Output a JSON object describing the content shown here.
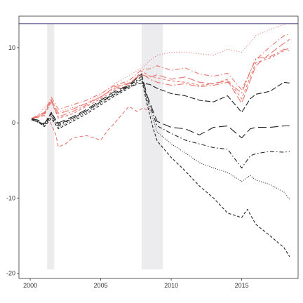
{
  "chart_data": {
    "type": "line",
    "title": "",
    "xlabel": "",
    "ylabel": "",
    "xlim": [
      1999.2,
      2019.0
    ],
    "ylim": [
      -20.7,
      14.2
    ],
    "x_ticks": [
      2000,
      2005,
      2010,
      2015
    ],
    "y_ticks": [
      -20,
      -10,
      0,
      10
    ],
    "x_tick_labels": [
      "2000",
      "2005",
      "2010",
      "2015"
    ],
    "y_tick_labels": [
      "-20",
      "-10",
      "0",
      "10"
    ],
    "grid": false,
    "legend": "none",
    "hline": {
      "y": 13.2,
      "color": "#6b6b9a"
    },
    "shaded_periods": [
      {
        "x0": 2001.2,
        "x1": 2001.7,
        "y0": -19.5,
        "y1": 13.2,
        "color": "#ececef"
      },
      {
        "x0": 2007.9,
        "x1": 2009.4,
        "y0": -19.5,
        "y1": 13.2,
        "color": "#ececef"
      }
    ],
    "series": [
      {
        "color": "#e8776f",
        "dash": "1,2.5",
        "x": [
          2000.1,
          2000.5,
          2001.0,
          2001.5,
          2002.0,
          2003.0,
          2004.0,
          2005.0,
          2006.0,
          2007.0,
          2007.9,
          2008.5,
          2009.0,
          2010.0,
          2011.0,
          2012.0,
          2013.0,
          2014.0,
          2015.0,
          2016.0,
          2017.0,
          2018.0,
          2018.4
        ],
        "y": [
          0.4,
          0.9,
          2.0,
          3.0,
          1.4,
          2.0,
          2.6,
          3.8,
          5.2,
          6.3,
          7.3,
          8.3,
          9.0,
          9.4,
          9.4,
          9.2,
          9.0,
          9.8,
          9.4,
          11.6,
          12.4,
          13.1,
          13.3
        ]
      },
      {
        "color": "#e8776f",
        "dash": "7,3,1.5,3",
        "x": [
          2000.1,
          2000.5,
          2001.0,
          2001.5,
          2002.0,
          2003.0,
          2004.0,
          2005.0,
          2006.0,
          2007.0,
          2007.9,
          2008.5,
          2009.0,
          2010.0,
          2011.0,
          2012.0,
          2013.0,
          2014.0,
          2015.0,
          2016.0,
          2017.0,
          2018.0,
          2018.4
        ],
        "y": [
          0.6,
          1.0,
          1.4,
          3.4,
          1.8,
          2.4,
          3.0,
          3.9,
          5.0,
          5.6,
          7.1,
          7.2,
          7.6,
          7.0,
          7.3,
          6.5,
          6.2,
          6.6,
          4.4,
          8.4,
          10.1,
          11.6,
          11.8
        ]
      },
      {
        "color": "#e8776f",
        "dash": "10,4",
        "x": [
          2000.1,
          2000.5,
          2001.0,
          2001.5,
          2002.0,
          2003.0,
          2004.0,
          2005.0,
          2006.0,
          2007.0,
          2007.9,
          2008.5,
          2009.0,
          2010.0,
          2011.0,
          2012.0,
          2013.0,
          2014.0,
          2015.0,
          2016.0,
          2017.0,
          2018.0,
          2018.4
        ],
        "y": [
          0.5,
          0.8,
          1.2,
          3.1,
          1.2,
          1.8,
          2.6,
          3.4,
          4.8,
          5.3,
          6.4,
          6.1,
          6.4,
          5.8,
          6.1,
          5.4,
          5.2,
          5.6,
          2.6,
          7.6,
          9.2,
          10.6,
          11.1
        ]
      },
      {
        "color": "#e8776f",
        "dash": "4,3",
        "x": [
          2000.1,
          2000.5,
          2001.0,
          2001.5,
          2002.0,
          2003.0,
          2004.0,
          2005.0,
          2006.0,
          2007.0,
          2007.9,
          2008.5,
          2009.0,
          2010.0,
          2011.0,
          2012.0,
          2013.0,
          2014.0,
          2015.0,
          2016.0,
          2017.0,
          2018.0,
          2018.4
        ],
        "y": [
          0.4,
          0.7,
          1.0,
          2.8,
          0.6,
          1.2,
          2.2,
          3.2,
          4.4,
          5.0,
          6.9,
          6.2,
          6.0,
          5.6,
          5.4,
          5.0,
          5.2,
          5.8,
          3.2,
          8.0,
          8.6,
          9.6,
          10.0
        ]
      },
      {
        "color": "#e8776f",
        "dash": "9,3,2,3",
        "x": [
          2000.1,
          2000.5,
          2001.0,
          2001.5,
          2002.0,
          2003.0,
          2004.0,
          2005.0,
          2006.0,
          2007.0,
          2007.9,
          2008.5,
          2009.0,
          2010.0,
          2011.0,
          2012.0,
          2013.0,
          2014.0,
          2015.0,
          2016.0,
          2017.0,
          2018.0,
          2018.4
        ],
        "y": [
          0.5,
          0.9,
          1.3,
          2.9,
          0.8,
          1.5,
          2.4,
          3.5,
          4.6,
          5.2,
          6.6,
          5.8,
          5.4,
          5.0,
          5.2,
          4.8,
          5.0,
          5.4,
          4.0,
          8.6,
          8.8,
          9.8,
          9.6
        ]
      },
      {
        "color": "#e8776f",
        "dash": "5,3",
        "x": [
          2000.1,
          2000.5,
          2001.0,
          2001.4,
          2001.8,
          2002.0,
          2002.5,
          2003.0,
          2004.0,
          2005.0,
          2005.5,
          2006.0,
          2007.0,
          2007.6,
          2008.0,
          2008.4
        ],
        "y": [
          0.4,
          0.8,
          1.0,
          0.2,
          -1.5,
          -3.2,
          -2.8,
          -2.0,
          -1.7,
          -2.3,
          -1.0,
          0.0,
          2.2,
          1.5,
          2.0,
          1.6
        ]
      },
      {
        "color": "#222222",
        "dash": "8,3",
        "x": [
          2000.1,
          2000.5,
          2001.0,
          2001.5,
          2002.0,
          2003.0,
          2004.0,
          2005.0,
          2006.0,
          2007.0,
          2007.9,
          2008.5,
          2009.0,
          2010.0,
          2011.0,
          2012.0,
          2013.0,
          2014.0,
          2015.0,
          2015.6,
          2016.0,
          2017.0,
          2018.0,
          2018.4
        ],
        "y": [
          0.4,
          0.2,
          -0.2,
          1.4,
          -0.2,
          0.6,
          1.6,
          2.8,
          3.8,
          4.8,
          5.3,
          5.1,
          4.6,
          3.9,
          3.6,
          3.0,
          2.8,
          3.6,
          1.4,
          3.2,
          3.8,
          4.2,
          5.4,
          5.3
        ]
      },
      {
        "color": "#222222",
        "dash": "12,5",
        "x": [
          2000.1,
          2000.5,
          2001.0,
          2001.5,
          2002.0,
          2003.0,
          2004.0,
          2005.0,
          2006.0,
          2007.0,
          2007.9,
          2008.3,
          2008.7,
          2009.0,
          2010.0,
          2011.0,
          2012.0,
          2013.0,
          2014.0,
          2015.0,
          2015.6,
          2016.0,
          2017.0,
          2018.0,
          2018.4
        ],
        "y": [
          0.5,
          0.4,
          -0.1,
          1.2,
          0.0,
          0.8,
          1.8,
          3.0,
          4.2,
          5.0,
          6.5,
          3.6,
          1.6,
          0.2,
          -0.6,
          -0.8,
          -1.6,
          -0.6,
          -0.4,
          -2.0,
          -0.8,
          -0.6,
          -0.6,
          -0.4,
          -0.4
        ]
      },
      {
        "color": "#222222",
        "dash": "6,3,1.5,3",
        "x": [
          2000.1,
          2000.5,
          2001.0,
          2001.5,
          2002.0,
          2003.0,
          2004.0,
          2005.0,
          2006.0,
          2007.0,
          2007.9,
          2008.3,
          2008.7,
          2009.0,
          2010.0,
          2011.0,
          2012.0,
          2013.0,
          2014.0,
          2015.0,
          2015.6,
          2016.0,
          2017.0,
          2018.0,
          2018.4
        ],
        "y": [
          0.6,
          0.3,
          -0.3,
          1.0,
          -0.4,
          0.6,
          1.6,
          2.8,
          4.0,
          4.9,
          6.2,
          3.2,
          1.2,
          -0.4,
          -1.4,
          -2.3,
          -2.8,
          -3.3,
          -3.5,
          -6.0,
          -4.4,
          -4.1,
          -3.8,
          -3.9,
          -3.8
        ]
      },
      {
        "color": "#222222",
        "dash": "1,2",
        "x": [
          2000.1,
          2000.5,
          2001.0,
          2001.5,
          2002.0,
          2003.0,
          2004.0,
          2005.0,
          2006.0,
          2007.0,
          2007.9,
          2008.3,
          2008.7,
          2009.0,
          2010.0,
          2011.0,
          2012.0,
          2013.0,
          2014.0,
          2015.0,
          2015.6,
          2016.0,
          2017.0,
          2018.0,
          2018.4
        ],
        "y": [
          0.4,
          0.1,
          -0.4,
          0.8,
          -0.6,
          0.4,
          1.4,
          2.6,
          3.8,
          4.8,
          6.0,
          2.8,
          0.6,
          -1.2,
          -2.8,
          -4.0,
          -5.3,
          -6.0,
          -6.6,
          -7.8,
          -7.0,
          -7.6,
          -8.2,
          -9.2,
          -10.2
        ]
      },
      {
        "color": "#222222",
        "dash": "4,2.5",
        "x": [
          2000.1,
          2000.5,
          2001.0,
          2001.5,
          2002.0,
          2003.0,
          2004.0,
          2005.0,
          2006.0,
          2007.0,
          2007.9,
          2008.3,
          2008.7,
          2009.0,
          2010.0,
          2011.0,
          2012.0,
          2013.0,
          2014.0,
          2015.0,
          2015.4,
          2016.0,
          2017.0,
          2018.0,
          2018.4
        ],
        "y": [
          0.5,
          0.2,
          -0.5,
          0.6,
          -0.8,
          0.2,
          1.2,
          2.4,
          3.6,
          4.6,
          5.8,
          2.4,
          -0.6,
          -2.4,
          -4.6,
          -6.4,
          -8.4,
          -10.0,
          -12.0,
          -12.6,
          -11.5,
          -13.5,
          -15.0,
          -16.6,
          -17.8
        ]
      }
    ]
  }
}
